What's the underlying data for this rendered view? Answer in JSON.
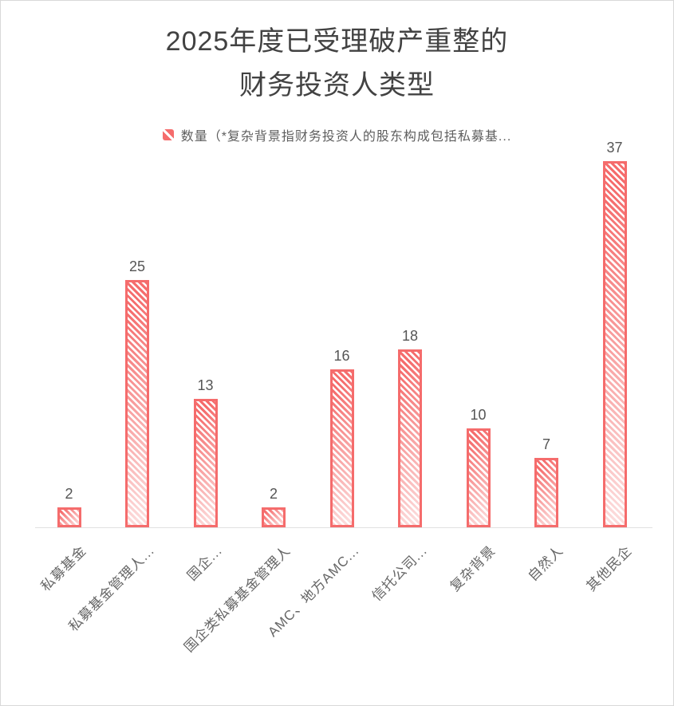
{
  "chart_data": {
    "type": "bar",
    "title": "2025年度已受理破产重整的财务投资人类型",
    "title_lines": [
      "2025年度已受理破产重整的",
      "财务投资人类型"
    ],
    "legend": {
      "series_label": "数量（*复杂背景指财务投资人的股东构成包括私募基...",
      "position": "top",
      "marker": "hatched-square"
    },
    "series_name": "数量",
    "categories": [
      "私募基金",
      "私募基金管理人...",
      "国企...",
      "国企类私募基金管理人",
      "AMC、地方AMC...",
      "信托公司...",
      "复杂背景",
      "自然人",
      "其他民企"
    ],
    "values": [
      2,
      25,
      13,
      2,
      16,
      18,
      10,
      7,
      37
    ],
    "value_labels_shown": true,
    "ylim": [
      0,
      40
    ],
    "grid": false,
    "y_axis_visible": false,
    "x_label_rotation_deg": 45,
    "bar_style": {
      "pattern": "diagonal-hatch",
      "color": "#f56c6c",
      "fill_base": "#ffffff"
    }
  },
  "colors": {
    "bar_red": "#f56c6c",
    "axis_line": "#e0e0e0",
    "title_text": "#424242",
    "value_label": "#555555",
    "axis_label": "#666666",
    "legend_text": "#5e5e5e",
    "frame_border": "#d9d9d9"
  }
}
